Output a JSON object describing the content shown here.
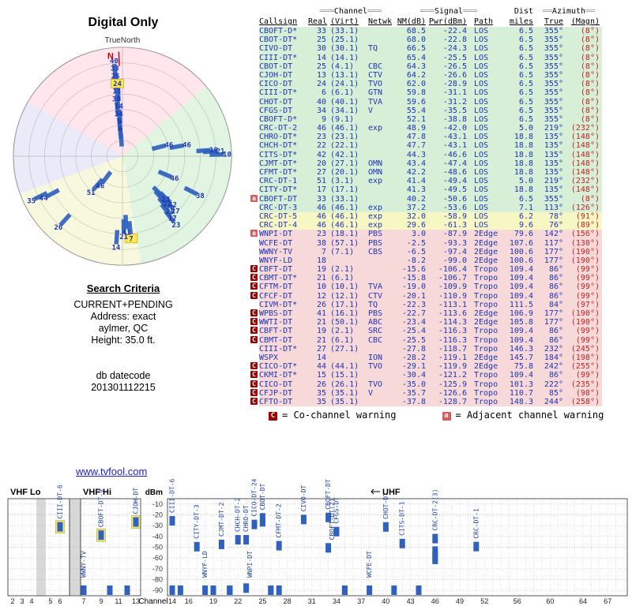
{
  "title": "Digital Only",
  "search": {
    "heading": "Search Criteria",
    "lines": [
      "CURRENT+PENDING",
      "Address: exact",
      "aylmer, QC",
      "Height: 35.0 ft."
    ],
    "db_label": "db datecode",
    "db_value": "201301112215"
  },
  "legend": {
    "co": {
      "symbol": "C",
      "text": "= Co-channel warning"
    },
    "adj": {
      "symbol": "a",
      "text": "= Adjacent channel warning"
    }
  },
  "footer_link": "www.tvfool.com",
  "colors": {
    "band_green": "#d6efd6",
    "band_yellow": "#f7f7c4",
    "band_pink": "#f8d9da",
    "bar_blue": "#2f62c0",
    "label_blue": "#1c35b5",
    "highlight_yellow": "#ffe94d",
    "warning_co": "#a00000",
    "warning_adj": "#d85c5c",
    "magnetic_red": "#c22222",
    "sector_pink": "#ffccd9",
    "sector_green": "#c6eac6",
    "sector_yellow": "#f1f1bd",
    "sector_lavender": "#d6d6f4",
    "gap_gray": "#d8d8d8"
  },
  "table": {
    "headers": {
      "channel": {
        "pre": "═══",
        "label": "Channel",
        "post": "═══"
      },
      "signal": {
        "pre": "═══",
        "label": "Signal",
        "post": "═══"
      },
      "dist": {
        "label": "Dist"
      },
      "azimuth": {
        "pre": "══",
        "label": "Azimuth",
        "post": "══"
      }
    },
    "columns": [
      "Callsign",
      "Real",
      "(Virt)",
      "Netwk",
      "NM(dB)",
      "Pwr(dBm)",
      "Path",
      "miles",
      "True",
      "(Magn)"
    ],
    "rows": [
      [
        "",
        "CBOFT-D*",
        "33",
        "(33.1)",
        "",
        "68.5",
        "-22.4",
        "LOS",
        "6.5",
        "355°",
        "(8°)",
        "g"
      ],
      [
        "",
        "CBOT-DT*",
        "25",
        "(25.1)",
        "",
        "68.0",
        "-22.8",
        "LOS",
        "6.5",
        "355°",
        "(8°)",
        "g"
      ],
      [
        "",
        "CIVO-DT",
        "30",
        "(30.1)",
        "TQ",
        "66.5",
        "-24.3",
        "LOS",
        "6.5",
        "355°",
        "(8°)",
        "g"
      ],
      [
        "",
        "CIII-DT*",
        "14",
        "(14.1)",
        "",
        "65.4",
        "-25.5",
        "LOS",
        "6.5",
        "355°",
        "(8°)",
        "g"
      ],
      [
        "",
        "CBOT-DT",
        "25",
        "(4.1)",
        "CBC",
        "64.3",
        "-26.5",
        "LOS",
        "6.5",
        "355°",
        "(8°)",
        "g"
      ],
      [
        "",
        "CJOH-DT",
        "13",
        "(13.1)",
        "CTV",
        "64.2",
        "-26.6",
        "LOS",
        "6.5",
        "355°",
        "(8°)",
        "g"
      ],
      [
        "",
        "CICO-DT",
        "24",
        "(24.1)",
        "TVO",
        "62.0",
        "-28.9",
        "LOS",
        "6.5",
        "355°",
        "(8°)",
        "g"
      ],
      [
        "",
        "CIII-DT*",
        "6",
        "(6.1)",
        "GTN",
        "59.8",
        "-31.1",
        "LOS",
        "6.5",
        "355°",
        "(8°)",
        "g"
      ],
      [
        "",
        "CHOT-DT",
        "40",
        "(40.1)",
        "TVA",
        "59.6",
        "-31.2",
        "LOS",
        "6.5",
        "355°",
        "(8°)",
        "g"
      ],
      [
        "",
        "CFGS-DT",
        "34",
        "(34.1)",
        "V",
        "55.4",
        "-35.5",
        "LOS",
        "6.5",
        "355°",
        "(8°)",
        "g"
      ],
      [
        "",
        "CBOFT-D*",
        "9",
        "(9.1)",
        "",
        "52.1",
        "-38.8",
        "LOS",
        "6.5",
        "355°",
        "(8°)",
        "g"
      ],
      [
        "",
        "CRC-DT-2",
        "46",
        "(46.1)",
        "exp",
        "48.9",
        "-42.0",
        "LOS",
        "5.0",
        "219°",
        "(232°)",
        "g"
      ],
      [
        "",
        "CHRO-DT*",
        "23",
        "(23.1)",
        "",
        "47.8",
        "-43.1",
        "LOS",
        "18.8",
        "135°",
        "(148°)",
        "g"
      ],
      [
        "",
        "CHCH-DT*",
        "22",
        "(22.1)",
        "",
        "47.7",
        "-43.1",
        "LOS",
        "18.8",
        "135°",
        "(148°)",
        "g"
      ],
      [
        "",
        "CITS-DT*",
        "42",
        "(42.1)",
        "",
        "44.3",
        "-46.6",
        "LOS",
        "18.8",
        "135°",
        "(148°)",
        "g"
      ],
      [
        "",
        "CJMT-DT*",
        "20",
        "(27.1)",
        "OMN",
        "43.4",
        "-47.4",
        "LOS",
        "18.8",
        "135°",
        "(148°)",
        "g"
      ],
      [
        "",
        "CFMT-DT*",
        "27",
        "(20.1)",
        "OMN",
        "42.2",
        "-48.6",
        "LOS",
        "18.8",
        "135°",
        "(148°)",
        "g"
      ],
      [
        "",
        "CRC-DT-1",
        "51",
        "(3.1)",
        "exp",
        "41.4",
        "-49.4",
        "LOS",
        "5.0",
        "219°",
        "(232°)",
        "g"
      ],
      [
        "",
        "CITY-DT*",
        "17",
        "(17.1)",
        "",
        "41.3",
        "-49.5",
        "LOS",
        "18.8",
        "135°",
        "(148°)",
        "g"
      ],
      [
        "a",
        "CBOFT-DT",
        "33",
        "(33.1)",
        "",
        "40.2",
        "-50.6",
        "LOS",
        "6.5",
        "355°",
        "(8°)",
        "g"
      ],
      [
        "",
        "CRC-DT-3",
        "46",
        "(46.1)",
        "exp",
        "37.2",
        "-53.6",
        "LOS",
        "7.1",
        "113°",
        "(126°)",
        "g"
      ],
      [
        "",
        "CRC-DT-5",
        "46",
        "(46.1)",
        "exp",
        "32.0",
        "-58.9",
        "LOS",
        "6.2",
        "78°",
        "(91°)",
        "y"
      ],
      [
        "",
        "CRC-DT-4",
        "46",
        "(46.1)",
        "exp",
        "29.6",
        "-61.3",
        "LOS",
        "9.6",
        "76°",
        "(89°)",
        "y"
      ],
      [
        "a",
        "WNPI-DT",
        "23",
        "(18.1)",
        "PBS",
        "3.0",
        "-87.9",
        "2Edge",
        "79.6",
        "142°",
        "(156°)",
        "p"
      ],
      [
        "",
        "WCFE-DT",
        "38",
        "(57.1)",
        "PBS",
        "-2.5",
        "-93.3",
        "2Edge",
        "107.6",
        "117°",
        "(130°)",
        "p"
      ],
      [
        "",
        "WWNY-TV",
        "7",
        "(7.1)",
        "CBS",
        "-6.5",
        "-97.4",
        "2Edge",
        "100.6",
        "177°",
        "(190°)",
        "p"
      ],
      [
        "",
        "WNYF-LD",
        "18",
        "",
        "",
        "-8.2",
        "-99.0",
        "2Edge",
        "100.6",
        "177°",
        "(190°)",
        "p"
      ],
      [
        "C",
        "CBFT-DT",
        "19",
        "(2.1)",
        "",
        "-15.6",
        "-106.4",
        "Tropo",
        "109.4",
        "86°",
        "(99°)",
        "p"
      ],
      [
        "C",
        "CBMT-DT*",
        "21",
        "(6.1)",
        "",
        "-15.8",
        "-106.7",
        "Tropo",
        "109.4",
        "86°",
        "(99°)",
        "p"
      ],
      [
        "C",
        "CFTM-DT",
        "10",
        "(10.1)",
        "TVA",
        "-19.0",
        "-109.9",
        "Tropo",
        "109.4",
        "86°",
        "(99°)",
        "p"
      ],
      [
        "C",
        "CFCF-DT",
        "12",
        "(12.1)",
        "CTV",
        "-20.1",
        "-110.9",
        "Tropo",
        "109.4",
        "86°",
        "(99°)",
        "p"
      ],
      [
        "",
        "CIVM-DT*",
        "26",
        "(17.1)",
        "TQ",
        "-22.3",
        "-113.1",
        "Tropo",
        "111.5",
        "84°",
        "(97°)",
        "p"
      ],
      [
        "C",
        "WPBS-DT",
        "41",
        "(16.1)",
        "PBS",
        "-22.7",
        "-113.6",
        "2Edge",
        "106.9",
        "177°",
        "(190°)",
        "p"
      ],
      [
        "C",
        "WWTI-DT",
        "21",
        "(50.1)",
        "ABC",
        "-23.4",
        "-114.3",
        "2Edge",
        "105.8",
        "177°",
        "(190°)",
        "p"
      ],
      [
        "C",
        "CBFT-DT",
        "19",
        "(2.1)",
        "SRC",
        "-25.4",
        "-116.3",
        "Tropo",
        "109.4",
        "86°",
        "(99°)",
        "p"
      ],
      [
        "C",
        "CBMT-DT",
        "21",
        "(6.1)",
        "CBC",
        "-25.5",
        "-116.3",
        "Tropo",
        "109.4",
        "86°",
        "(99°)",
        "p"
      ],
      [
        "",
        "CIII-DT*",
        "27",
        "(27.1)",
        "",
        "-27.8",
        "-118.7",
        "Tropo",
        "146.3",
        "232°",
        "(245°)",
        "p"
      ],
      [
        "",
        "WSPX",
        "14",
        "",
        "ION",
        "-28.2",
        "-119.1",
        "2Edge",
        "145.7",
        "184°",
        "(198°)",
        "p"
      ],
      [
        "C",
        "CICO-DT*",
        "44",
        "(44.1)",
        "TVO",
        "-29.1",
        "-119.9",
        "2Edge",
        "75.8",
        "242°",
        "(255°)",
        "p"
      ],
      [
        "C",
        "CKMI-DT*",
        "15",
        "(15.1)",
        "",
        "-30.4",
        "-121.2",
        "Tropo",
        "109.4",
        "86°",
        "(99°)",
        "p"
      ],
      [
        "C",
        "CICO-DT",
        "26",
        "(26.1)",
        "TVO",
        "-35.0",
        "-125.9",
        "Tropo",
        "101.3",
        "222°",
        "(235°)",
        "p"
      ],
      [
        "C",
        "CFJP-DT",
        "35",
        "(35.1)",
        "V",
        "-35.7",
        "-126.6",
        "Tropo",
        "110.7",
        "85°",
        "(98°)",
        "p"
      ],
      [
        "C",
        "CFTO-DT",
        "35",
        "(35.1)",
        "",
        "-37.8",
        "-128.7",
        "Tropo",
        "148.3",
        "244°",
        "(258°)",
        "p"
      ]
    ]
  },
  "chart_data": [
    {
      "type": "scatter",
      "name": "azimuth-polar-plot",
      "title": "Digital Only",
      "compass": {
        "north_label": "N",
        "axis_label": "TrueNorth"
      },
      "rings": 7,
      "points": [
        [
          "40",
          355,
          0.88,
          0
        ],
        [
          "33",
          355,
          0.81,
          0
        ],
        [
          "25",
          355,
          0.74,
          0
        ],
        [
          "24",
          356,
          0.67,
          1
        ],
        [
          "13",
          355,
          0.6,
          0
        ],
        [
          "30",
          354,
          0.53,
          0
        ],
        [
          "14",
          356,
          0.46,
          0
        ],
        [
          "34",
          355,
          0.39,
          0
        ],
        [
          "9",
          355,
          0.32,
          0
        ],
        [
          "6",
          356,
          0.25,
          0
        ],
        [
          "46",
          80,
          0.6,
          0
        ],
        [
          "46",
          76,
          0.44,
          0
        ],
        [
          "46",
          113,
          0.52,
          0
        ],
        [
          "19",
          86,
          0.84,
          0
        ],
        [
          "21",
          87,
          0.9,
          0
        ],
        [
          "10",
          89,
          0.96,
          0
        ],
        [
          "38",
          117,
          0.8,
          0
        ],
        [
          "23",
          135,
          0.56,
          0
        ],
        [
          "22",
          137,
          0.6,
          0
        ],
        [
          "42",
          134,
          0.64,
          0
        ],
        [
          "20",
          139,
          0.67,
          0
        ],
        [
          "27",
          136,
          0.7,
          0
        ],
        [
          "17",
          141,
          0.73,
          0
        ],
        [
          "23",
          142,
          0.8,
          0
        ],
        [
          "7",
          174,
          0.76,
          1
        ],
        [
          "41",
          177,
          0.7,
          0
        ],
        [
          "21",
          179,
          0.74,
          0
        ],
        [
          "14",
          184,
          0.84,
          0
        ],
        [
          "46",
          217,
          0.34,
          0
        ],
        [
          "51",
          221,
          0.44,
          0
        ],
        [
          "44",
          242,
          0.82,
          0
        ],
        [
          "26",
          222,
          0.88,
          0
        ],
        [
          "35",
          244,
          0.93,
          0
        ]
      ]
    },
    {
      "type": "bar",
      "name": "channel-spectrum",
      "ylabel": "dBm",
      "xlabel": "Channel",
      "yticks": [
        -10,
        -20,
        -30,
        -40,
        -50,
        -60,
        -70,
        -80,
        -90
      ],
      "bands": [
        {
          "label": "VHF Lo"
        },
        {
          "label": "VHF Hi"
        },
        {
          "label": "UHF"
        }
      ],
      "vhf_ticks": [
        2,
        3,
        4,
        5,
        6,
        7,
        9,
        11,
        13
      ],
      "uhf_ticks": [
        14,
        16,
        19,
        22,
        25,
        28,
        31,
        34,
        37,
        40,
        43,
        46,
        49,
        52,
        56,
        60,
        64,
        67
      ],
      "bars": [
        [
          33,
          -22.4
        ],
        [
          25,
          -22.8
        ],
        [
          30,
          -24.3
        ],
        [
          14,
          -25.5
        ],
        [
          25,
          -26.5
        ],
        [
          13,
          -26.6
        ],
        [
          24,
          -28.9
        ],
        [
          6,
          -31.1
        ],
        [
          40,
          -31.2
        ],
        [
          34,
          -35.5
        ],
        [
          9,
          -38.8
        ],
        [
          46,
          -42.0
        ],
        [
          23,
          -43.1
        ],
        [
          22,
          -43.1
        ],
        [
          42,
          -46.6
        ],
        [
          20,
          -47.4
        ],
        [
          27,
          -48.6
        ],
        [
          51,
          -49.4
        ],
        [
          17,
          -49.5
        ],
        [
          33,
          -50.6
        ],
        [
          46,
          -53.6
        ],
        [
          46,
          -58.9
        ],
        [
          46,
          -61.3
        ],
        [
          23,
          -87.9
        ],
        [
          38,
          -93.3
        ],
        [
          7,
          -97.4
        ],
        [
          18,
          -99.0
        ],
        [
          19,
          -106.4
        ],
        [
          21,
          -106.7
        ],
        [
          10,
          -109.9
        ],
        [
          12,
          -110.9
        ],
        [
          26,
          -113.1
        ],
        [
          41,
          -113.6
        ],
        [
          21,
          -114.3
        ],
        [
          19,
          -116.3
        ],
        [
          21,
          -116.3
        ],
        [
          27,
          -118.7
        ],
        [
          14,
          -119.1
        ],
        [
          44,
          -119.9
        ],
        [
          15,
          -121.2
        ],
        [
          26,
          -125.9
        ],
        [
          35,
          -126.6
        ],
        [
          35,
          -128.7
        ]
      ],
      "labels": [
        [
          6,
          "CIII-DT-6",
          -31.1,
          1
        ],
        [
          7,
          "WWNY-TV",
          -97.4,
          0
        ],
        [
          9,
          "CBOFT-DT-9",
          -38.8,
          1
        ],
        [
          13,
          "CJOH-DT",
          -26.6,
          1
        ],
        [
          14,
          "CIII-DT-6(1)",
          -25.5,
          0
        ],
        [
          17,
          "CITY-DT-3",
          -49.5,
          0
        ],
        [
          18,
          "WNYF-LD",
          -99.0,
          0
        ],
        [
          20,
          "CJMT-DT-2",
          -47.4,
          0
        ],
        [
          22,
          "CHCH-DT-2",
          -43.1,
          0
        ],
        [
          23,
          "CHRO-DT",
          -43.1,
          0
        ],
        [
          23,
          "WNPI-DT",
          -87.9,
          0
        ],
        [
          24,
          "CICO-DT-24",
          -28.9,
          0
        ],
        [
          25,
          "CBOT-DT",
          -22.8,
          0
        ],
        [
          27,
          "CFMT-DT-2",
          -48.6,
          0
        ],
        [
          30,
          "CIVO-DT",
          -24.3,
          0
        ],
        [
          33,
          "CBOFT-DT(1)",
          -22.4,
          0
        ],
        [
          33,
          "CBOFT-DT(2)",
          -50.6,
          0
        ],
        [
          34,
          "CFGS-DT",
          -35.5,
          0
        ],
        [
          38,
          "WCFE-DT",
          -93.3,
          0
        ],
        [
          40,
          "CHOT-DT",
          -31.2,
          0
        ],
        [
          42,
          "CITS-DT-1",
          -46.6,
          0
        ],
        [
          46,
          "CRC-DT-2(3)",
          -42.0,
          0
        ],
        [
          51,
          "CRC-DT-1",
          -49.4,
          0
        ]
      ]
    }
  ]
}
